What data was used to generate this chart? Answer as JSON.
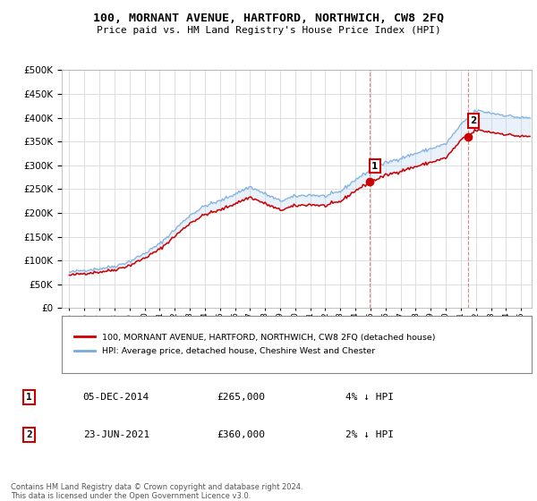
{
  "title": "100, MORNANT AVENUE, HARTFORD, NORTHWICH, CW8 2FQ",
  "subtitle": "Price paid vs. HM Land Registry's House Price Index (HPI)",
  "ylim": [
    0,
    500000
  ],
  "xlim_start": 1994.5,
  "xlim_end": 2025.7,
  "purchase1_date": 2014.92,
  "purchase1_price": 265000,
  "purchase2_date": 2021.47,
  "purchase2_price": 360000,
  "legend_label_red": "100, MORNANT AVENUE, HARTFORD, NORTHWICH, CW8 2FQ (detached house)",
  "legend_label_blue": "HPI: Average price, detached house, Cheshire West and Chester",
  "table_row1": [
    "1",
    "05-DEC-2014",
    "£265,000",
    "4% ↓ HPI"
  ],
  "table_row2": [
    "2",
    "23-JUN-2021",
    "£360,000",
    "2% ↓ HPI"
  ],
  "footer": "Contains HM Land Registry data © Crown copyright and database right 2024.\nThis data is licensed under the Open Government Licence v3.0.",
  "line_color_red": "#cc0000",
  "line_color_blue": "#77aadd",
  "fill_color_blue": "#aaccee",
  "bg_color": "#ffffff",
  "grid_color": "#dddddd",
  "vline_color": "#cc3333",
  "point_color_red": "#cc0000",
  "annotation_box_color": "#cc0000",
  "hpi_years": [
    1995,
    1996,
    1997,
    1998,
    1999,
    2000,
    2001,
    2002,
    2003,
    2004,
    2005,
    2006,
    2007,
    2008,
    2009,
    2010,
    2011,
    2012,
    2013,
    2014,
    2015,
    2016,
    2017,
    2018,
    2019,
    2020,
    2021,
    2022,
    2023,
    2024,
    2025
  ],
  "hpi_vals": [
    75000,
    80000,
    83000,
    88000,
    98000,
    115000,
    135000,
    165000,
    195000,
    215000,
    225000,
    240000,
    255000,
    240000,
    225000,
    235000,
    238000,
    235000,
    245000,
    270000,
    290000,
    305000,
    315000,
    325000,
    335000,
    345000,
    385000,
    415000,
    410000,
    405000,
    400000
  ]
}
